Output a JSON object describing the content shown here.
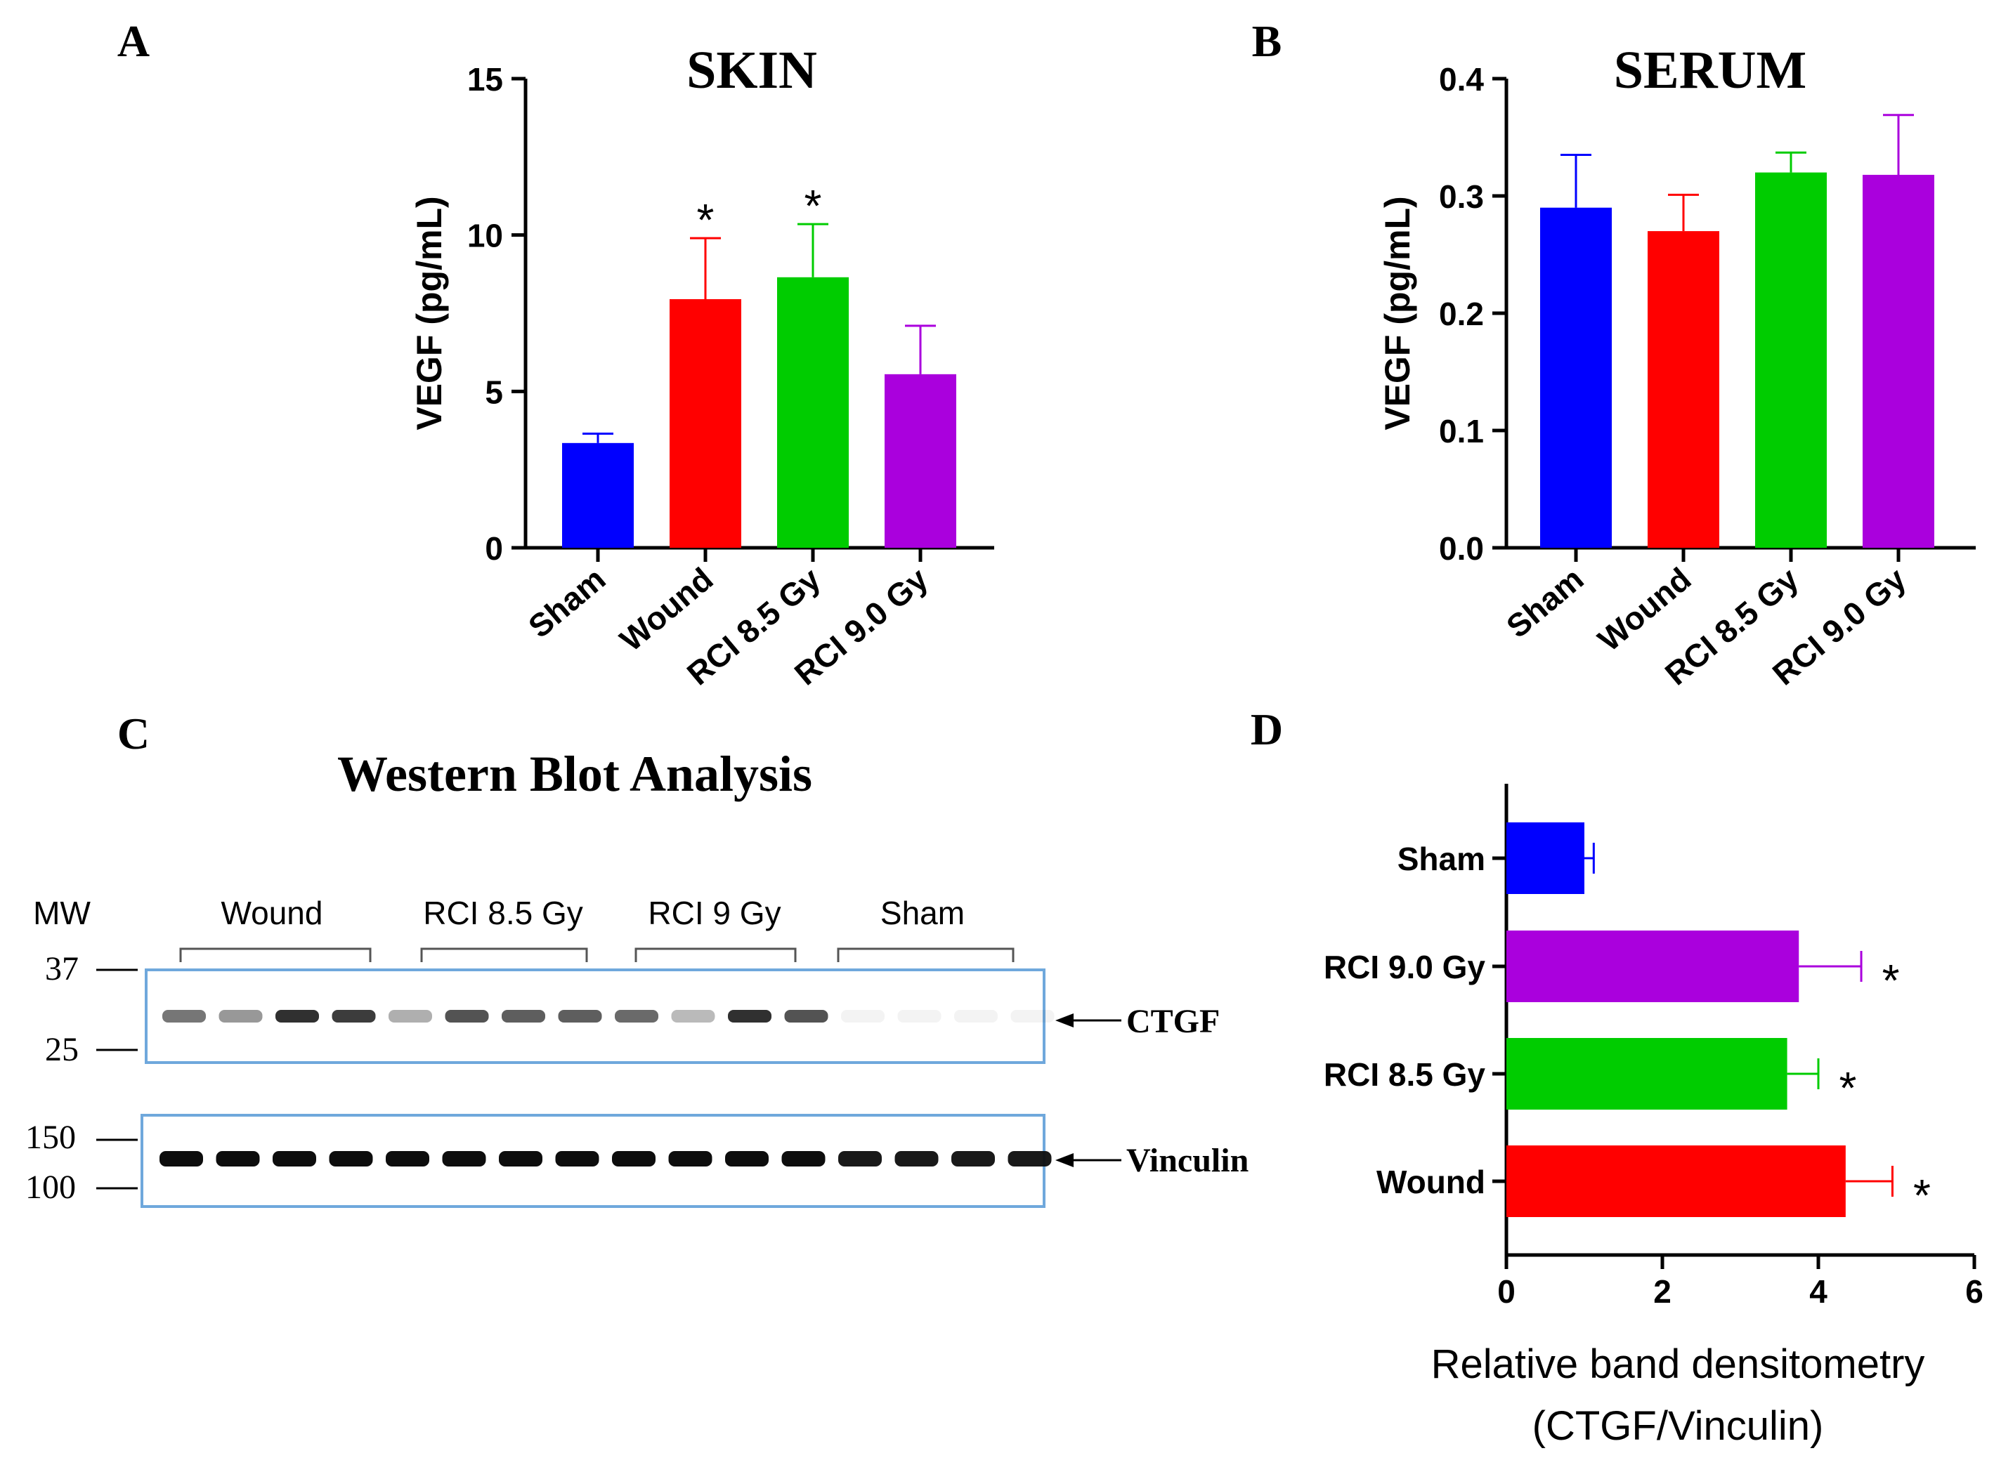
{
  "panels": {
    "A": {
      "letter": "A",
      "chart_data": {
        "type": "bar",
        "title": "SKIN",
        "ylabel": "VEGF (pg/mL)",
        "xlabel": "",
        "categories": [
          "Sham",
          "Wound",
          "RCI 8.5 Gy",
          "RCI 9.0 Gy"
        ],
        "values": [
          3.35,
          7.95,
          8.65,
          5.55
        ],
        "errors": [
          0.3,
          1.95,
          1.7,
          1.55
        ],
        "significance": [
          "",
          "*",
          "*",
          ""
        ],
        "colors": [
          "#0000ff",
          "#ff0000",
          "#00cc00",
          "#aa00dd"
        ],
        "ylim": [
          0,
          15
        ],
        "yticks": [
          "0",
          "5",
          "10",
          "15"
        ],
        "ytick_values": [
          0,
          5,
          10,
          15
        ]
      }
    },
    "B": {
      "letter": "B",
      "chart_data": {
        "type": "bar",
        "title": "SERUM",
        "ylabel": "VEGF (pg/mL)",
        "xlabel": "",
        "categories": [
          "Sham",
          "Wound",
          "RCI 8.5 Gy",
          "RCI 9.0 Gy"
        ],
        "values": [
          0.29,
          0.27,
          0.32,
          0.318
        ],
        "errors": [
          0.045,
          0.031,
          0.017,
          0.051
        ],
        "significance": [
          "",
          "",
          "",
          ""
        ],
        "colors": [
          "#0000ff",
          "#ff0000",
          "#00cc00",
          "#aa00dd"
        ],
        "ylim": [
          0,
          0.4
        ],
        "yticks": [
          "0.0",
          "0.1",
          "0.2",
          "0.3",
          "0.4"
        ],
        "ytick_values": [
          0,
          0.1,
          0.2,
          0.3,
          0.4
        ]
      }
    },
    "C": {
      "letter": "C",
      "title": "Western Blot Analysis",
      "mw_label": "MW",
      "groups": [
        "Wound",
        "RCI 8.5 Gy",
        "RCI 9 Gy",
        "Sham"
      ],
      "upper_blot": {
        "markers": [
          "37",
          "25"
        ],
        "protein": "CTGF",
        "band_intensities": [
          0.6,
          0.45,
          0.9,
          0.85,
          0.35,
          0.75,
          0.7,
          0.7,
          0.65,
          0.3,
          0.9,
          0.75,
          0.03,
          0.03,
          0.03,
          0.03
        ]
      },
      "lower_blot": {
        "markers": [
          "150",
          "100"
        ],
        "protein": "Vinculin",
        "band_intensities": [
          1,
          1,
          1,
          1,
          1,
          1,
          1,
          1,
          1,
          1,
          1,
          1,
          0.95,
          0.95,
          0.95,
          0.95
        ]
      }
    },
    "D": {
      "letter": "D",
      "chart_data": {
        "type": "bar",
        "orientation": "horizontal",
        "title": "",
        "xlabel_line1": "Relative band densitometry",
        "xlabel_line2": "(CTGF/Vinculin)",
        "ylabel": "",
        "categories": [
          "Sham",
          "RCI 9.0 Gy",
          "RCI 8.5 Gy",
          "Wound"
        ],
        "values": [
          1.0,
          3.75,
          3.6,
          4.35
        ],
        "errors": [
          0.12,
          0.8,
          0.4,
          0.6
        ],
        "significance": [
          "",
          "*",
          "*",
          "*"
        ],
        "colors": [
          "#0000ff",
          "#aa00dd",
          "#00cc00",
          "#ff0000"
        ],
        "xlim": [
          0,
          6
        ],
        "xticks": [
          "0",
          "2",
          "4",
          "6"
        ],
        "xtick_values": [
          0,
          2,
          4,
          6
        ]
      }
    }
  }
}
